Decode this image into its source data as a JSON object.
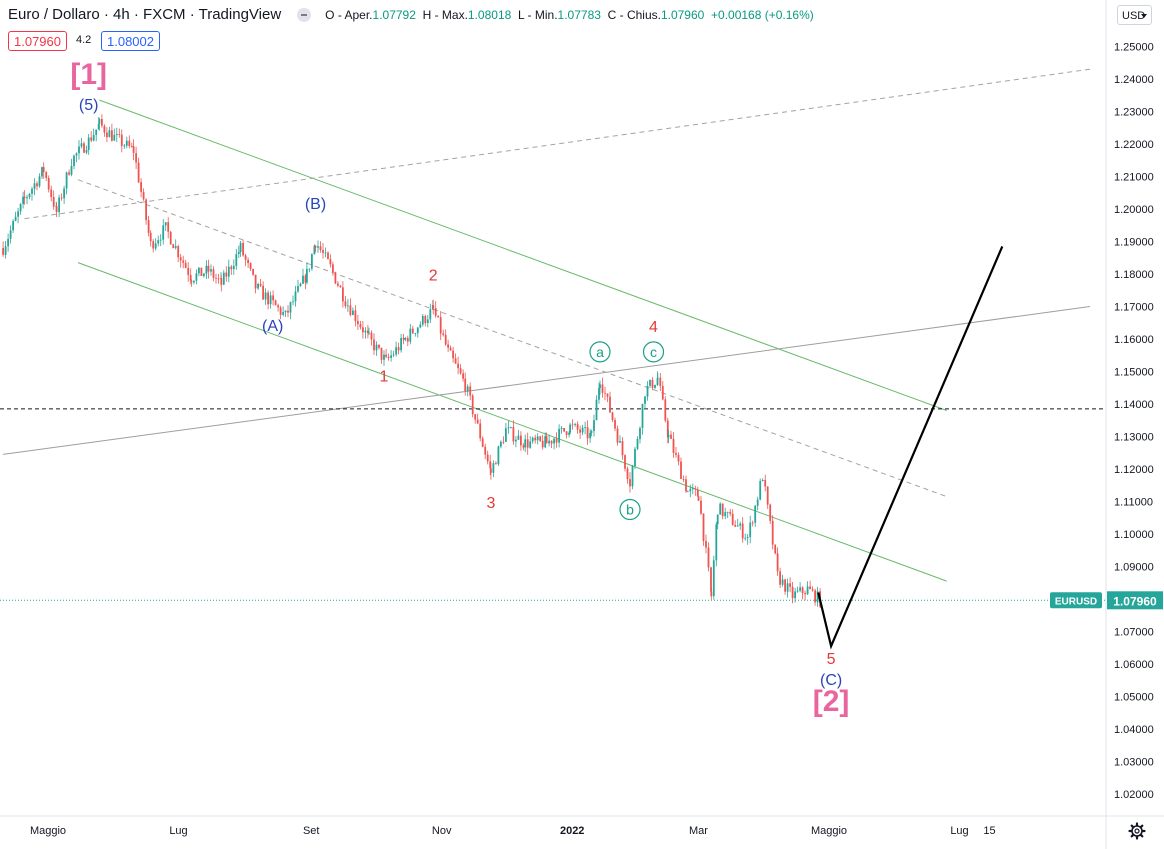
{
  "header": {
    "title": "Euro / Dollaro · 4h · FXCM · TradingView",
    "open_label": "O - Aper.",
    "open": "1.07792",
    "high_label": "H - Max.",
    "high": "1.08018",
    "low_label": "L - Min.",
    "low": "1.07783",
    "close_label": "C - Chius.",
    "close": "1.07960",
    "change": "+0.00168 (+0.16%)"
  },
  "trade": {
    "sell": "1.07960",
    "spread": "4.2",
    "buy": "1.08002"
  },
  "currency": "USD",
  "current_price_label": {
    "symbol": "EURUSD",
    "price": "1.07960"
  },
  "colors": {
    "up": "#26a69a",
    "down": "#ef5350",
    "channel": "#66bb6a",
    "wave_red": "#e53935",
    "wave_blue": "#2845b8",
    "wave_teal": "#1aa088",
    "wave_pink": "#e8669d"
  },
  "chart_data": {
    "type": "candlestick",
    "title": "",
    "ylim": [
      1.012,
      1.258
    ],
    "y_ticks": [
      "1.25000",
      "1.24000",
      "1.23000",
      "1.22000",
      "1.21000",
      "1.20000",
      "1.19000",
      "1.18000",
      "1.17000",
      "1.16000",
      "1.15000",
      "1.14000",
      "1.13000",
      "1.12000",
      "1.11000",
      "1.10000",
      "1.09000",
      "1.08000",
      "1.07000",
      "1.06000",
      "1.05000",
      "1.04000",
      "1.03000",
      "1.02000"
    ],
    "x_ticks": [
      {
        "label": "Maggio",
        "date": "2021-05-01"
      },
      {
        "label": "Lug",
        "date": "2021-07-01"
      },
      {
        "label": "Set",
        "date": "2021-09-01"
      },
      {
        "label": "Nov",
        "date": "2021-11-01"
      },
      {
        "label": "2022",
        "date": "2022-01-01"
      },
      {
        "label": "Mar",
        "date": "2022-03-01"
      },
      {
        "label": "Maggio",
        "date": "2022-05-01"
      },
      {
        "label": "Lug",
        "date": "2022-07-01"
      },
      {
        "label": "15",
        "date": "2022-07-15"
      }
    ],
    "price_path": [
      [
        "2021-04-10",
        1.188
      ],
      [
        "2021-04-20",
        1.203
      ],
      [
        "2021-04-29",
        1.212
      ],
      [
        "2021-05-05",
        1.199
      ],
      [
        "2021-05-12",
        1.215
      ],
      [
        "2021-05-20",
        1.221
      ],
      [
        "2021-05-25",
        1.226
      ],
      [
        "2021-06-01",
        1.222
      ],
      [
        "2021-06-10",
        1.218
      ],
      [
        "2021-06-18",
        1.189
      ],
      [
        "2021-06-25",
        1.194
      ],
      [
        "2021-07-07",
        1.179
      ],
      [
        "2021-07-15",
        1.181
      ],
      [
        "2021-07-21",
        1.177
      ],
      [
        "2021-07-30",
        1.188
      ],
      [
        "2021-08-06",
        1.176
      ],
      [
        "2021-08-20",
        1.167
      ],
      [
        "2021-08-30",
        1.18
      ],
      [
        "2021-09-03",
        1.19
      ],
      [
        "2021-09-10",
        1.182
      ],
      [
        "2021-09-17",
        1.172
      ],
      [
        "2021-09-28",
        1.16
      ],
      [
        "2021-10-06",
        1.153
      ],
      [
        "2021-10-15",
        1.16
      ],
      [
        "2021-10-28",
        1.169
      ],
      [
        "2021-11-04",
        1.156
      ],
      [
        "2021-11-12",
        1.146
      ],
      [
        "2021-11-24",
        1.119
      ],
      [
        "2021-12-01",
        1.132
      ],
      [
        "2021-12-10",
        1.128
      ],
      [
        "2021-12-20",
        1.128
      ],
      [
        "2021-12-31",
        1.133
      ],
      [
        "2022-01-10",
        1.13
      ],
      [
        "2022-01-14",
        1.148
      ],
      [
        "2022-01-21",
        1.133
      ],
      [
        "2022-01-28",
        1.116
      ],
      [
        "2022-02-04",
        1.144
      ],
      [
        "2022-02-10",
        1.148
      ],
      [
        "2022-02-15",
        1.13
      ],
      [
        "2022-02-24",
        1.113
      ],
      [
        "2022-03-01",
        1.112
      ],
      [
        "2022-03-07",
        1.081
      ],
      [
        "2022-03-10",
        1.108
      ],
      [
        "2022-03-17",
        1.104
      ],
      [
        "2022-03-24",
        1.099
      ],
      [
        "2022-03-31",
        1.118
      ],
      [
        "2022-04-07",
        1.087
      ],
      [
        "2022-04-14",
        1.081
      ],
      [
        "2022-04-21",
        1.083
      ],
      [
        "2022-04-28",
        1.079
      ]
    ],
    "projection": [
      [
        "2022-04-26",
        1.082
      ],
      [
        "2022-05-02",
        1.0655
      ],
      [
        "2022-07-21",
        1.1885
      ]
    ],
    "horizontal_line": 1.1385,
    "current_price": 1.0796,
    "trend_lines": [
      {
        "style": "channel",
        "from": [
          "2021-05-25",
          1.2335
        ],
        "to": [
          "2022-06-25",
          1.138
        ]
      },
      {
        "style": "channel",
        "from": [
          "2021-05-15",
          1.1835
        ],
        "to": [
          "2022-06-25",
          1.0855
        ]
      },
      {
        "style": "gray",
        "from": [
          "2021-04-10",
          1.1245
        ],
        "to": [
          "2022-08-31",
          1.17
        ]
      },
      {
        "style": "dashed",
        "from": [
          "2021-04-20",
          1.197
        ],
        "to": [
          "2022-08-31",
          1.243
        ]
      },
      {
        "style": "dashed",
        "from": [
          "2021-05-15",
          1.209
        ],
        "to": [
          "2022-06-25",
          1.1115
        ]
      }
    ],
    "wave_labels": [
      {
        "text": "[1]",
        "date": "2021-05-20",
        "price": 1.2385,
        "color": "wave_pink",
        "size": "big"
      },
      {
        "text": "(5)",
        "date": "2021-05-20",
        "price": 1.2305,
        "color": "wave_blue"
      },
      {
        "text": "(B)",
        "date": "2021-09-03",
        "price": 1.2,
        "color": "wave_blue"
      },
      {
        "text": "(A)",
        "date": "2021-08-14",
        "price": 1.1625,
        "color": "wave_blue"
      },
      {
        "text": "2",
        "date": "2021-10-28",
        "price": 1.178,
        "color": "wave_red"
      },
      {
        "text": "1",
        "date": "2021-10-05",
        "price": 1.147,
        "color": "wave_red"
      },
      {
        "text": "3",
        "date": "2021-11-24",
        "price": 1.108,
        "color": "wave_red"
      },
      {
        "text": "a",
        "date": "2022-01-14",
        "price": 1.1545,
        "color": "wave_teal",
        "circle": true
      },
      {
        "text": "4",
        "date": "2022-02-08",
        "price": 1.1622,
        "color": "wave_red"
      },
      {
        "text": "c",
        "date": "2022-02-08",
        "price": 1.1545,
        "color": "wave_teal",
        "circle": true
      },
      {
        "text": "b",
        "date": "2022-01-28",
        "price": 1.106,
        "color": "wave_teal",
        "circle": true
      },
      {
        "text": "5",
        "date": "2022-05-02",
        "price": 1.06,
        "color": "wave_red"
      },
      {
        "text": "(C)",
        "date": "2022-05-02",
        "price": 1.0535,
        "color": "wave_blue"
      },
      {
        "text": "[2]",
        "date": "2022-05-02",
        "price": 1.0455,
        "color": "wave_pink",
        "size": "big"
      }
    ]
  }
}
